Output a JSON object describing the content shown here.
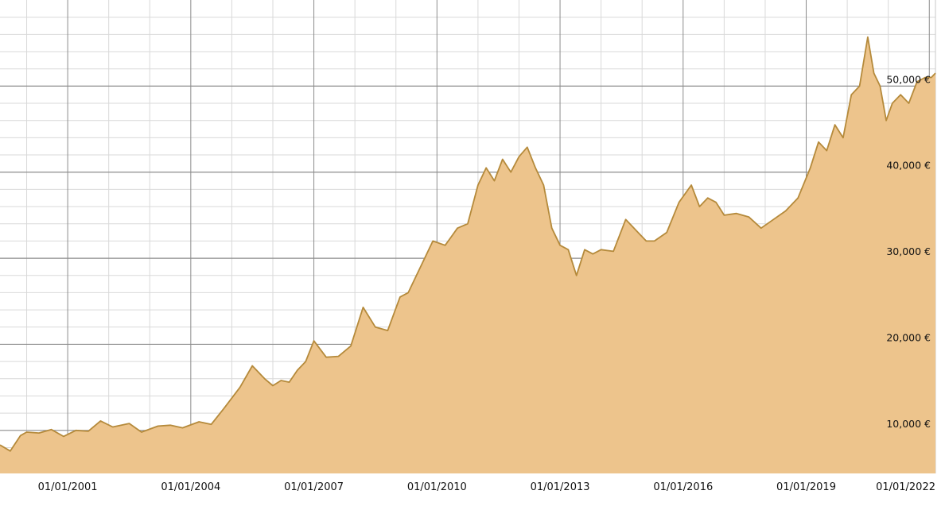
{
  "chart_data": {
    "type": "area",
    "title": "",
    "xlabel": "",
    "ylabel": "",
    "x_tick_labels": [
      "01/01/2001",
      "01/01/2004",
      "01/01/2007",
      "01/01/2010",
      "01/01/2013",
      "01/01/2016",
      "01/01/2019",
      "01/01/2022"
    ],
    "x_tick_years": [
      2001,
      2004,
      2007,
      2010,
      2013,
      2016,
      2019,
      2022
    ],
    "y_ticks": [
      10000,
      20000,
      30000,
      40000,
      50000
    ],
    "y_tick_labels": [
      "10,000 €",
      "20,000 €",
      "30,000 €",
      "40,000 €",
      "50,000 €"
    ],
    "xlim": [
      1999.35,
      2022.15
    ],
    "ylim": [
      5000,
      60000
    ],
    "grid": true,
    "legend": "none",
    "colors": {
      "fill": "#edc48c",
      "line": "#b58a3b",
      "grid_major": "#8c8c8c",
      "grid_minor": "#d9d9d9"
    },
    "series": [
      {
        "x": [
          1999.35,
          1999.6,
          1999.85,
          2000.0,
          2000.3,
          2000.6,
          2000.9,
          2001.2,
          2001.5,
          2001.8,
          2002.1,
          2002.5,
          2002.8,
          2003.2,
          2003.5,
          2003.8,
          2004.2,
          2004.5,
          2004.8,
          2005.2,
          2005.5,
          2005.8,
          2006.0,
          2006.2,
          2006.4,
          2006.6,
          2006.8,
          2007.0,
          2007.3,
          2007.6,
          2007.9,
          2008.2,
          2008.5,
          2008.8,
          2009.1,
          2009.3,
          2009.6,
          2009.9,
          2010.2,
          2010.35,
          2010.5,
          2010.75,
          2011.0,
          2011.2,
          2011.4,
          2011.6,
          2011.8,
          2012.0,
          2012.2,
          2012.4,
          2012.6,
          2012.8,
          2013.0,
          2013.2,
          2013.4,
          2013.6,
          2013.8,
          2014.0,
          2014.3,
          2014.6,
          2014.9,
          2015.1,
          2015.3,
          2015.6,
          2015.9,
          2016.2,
          2016.4,
          2016.6,
          2016.8,
          2017.0,
          2017.3,
          2017.6,
          2017.9,
          2018.2,
          2018.5,
          2018.8,
          2019.1,
          2019.3,
          2019.5,
          2019.7,
          2019.9,
          2020.1,
          2020.3,
          2020.5,
          2020.65,
          2020.8,
          2020.95,
          2021.1,
          2021.3,
          2021.5,
          2021.7,
          2021.9,
          2022.05,
          2022.15
        ],
        "values": [
          8300,
          7600,
          9400,
          9800,
          9700,
          10100,
          9300,
          10000,
          9900,
          11100,
          10400,
          10800,
          9800,
          10500,
          10600,
          10300,
          11000,
          10700,
          12500,
          15000,
          17500,
          16000,
          15200,
          15800,
          15600,
          17000,
          18000,
          20400,
          18500,
          18600,
          19800,
          24300,
          22000,
          21600,
          25500,
          26000,
          29000,
          32000,
          31500,
          32500,
          33500,
          34000,
          38500,
          40500,
          39000,
          41500,
          40000,
          41800,
          42900,
          40500,
          38500,
          33500,
          31500,
          31000,
          28000,
          31000,
          30500,
          31000,
          30800,
          34500,
          33000,
          32000,
          32000,
          33000,
          36500,
          38500,
          36000,
          37000,
          36500,
          35000,
          35200,
          34800,
          33500,
          34500,
          35500,
          37000,
          40500,
          43500,
          42500,
          45500,
          44000,
          49000,
          50000,
          55700,
          51500,
          50000,
          46000,
          48000,
          49000,
          48000,
          50500,
          51000,
          51000,
          51500
        ]
      }
    ]
  }
}
